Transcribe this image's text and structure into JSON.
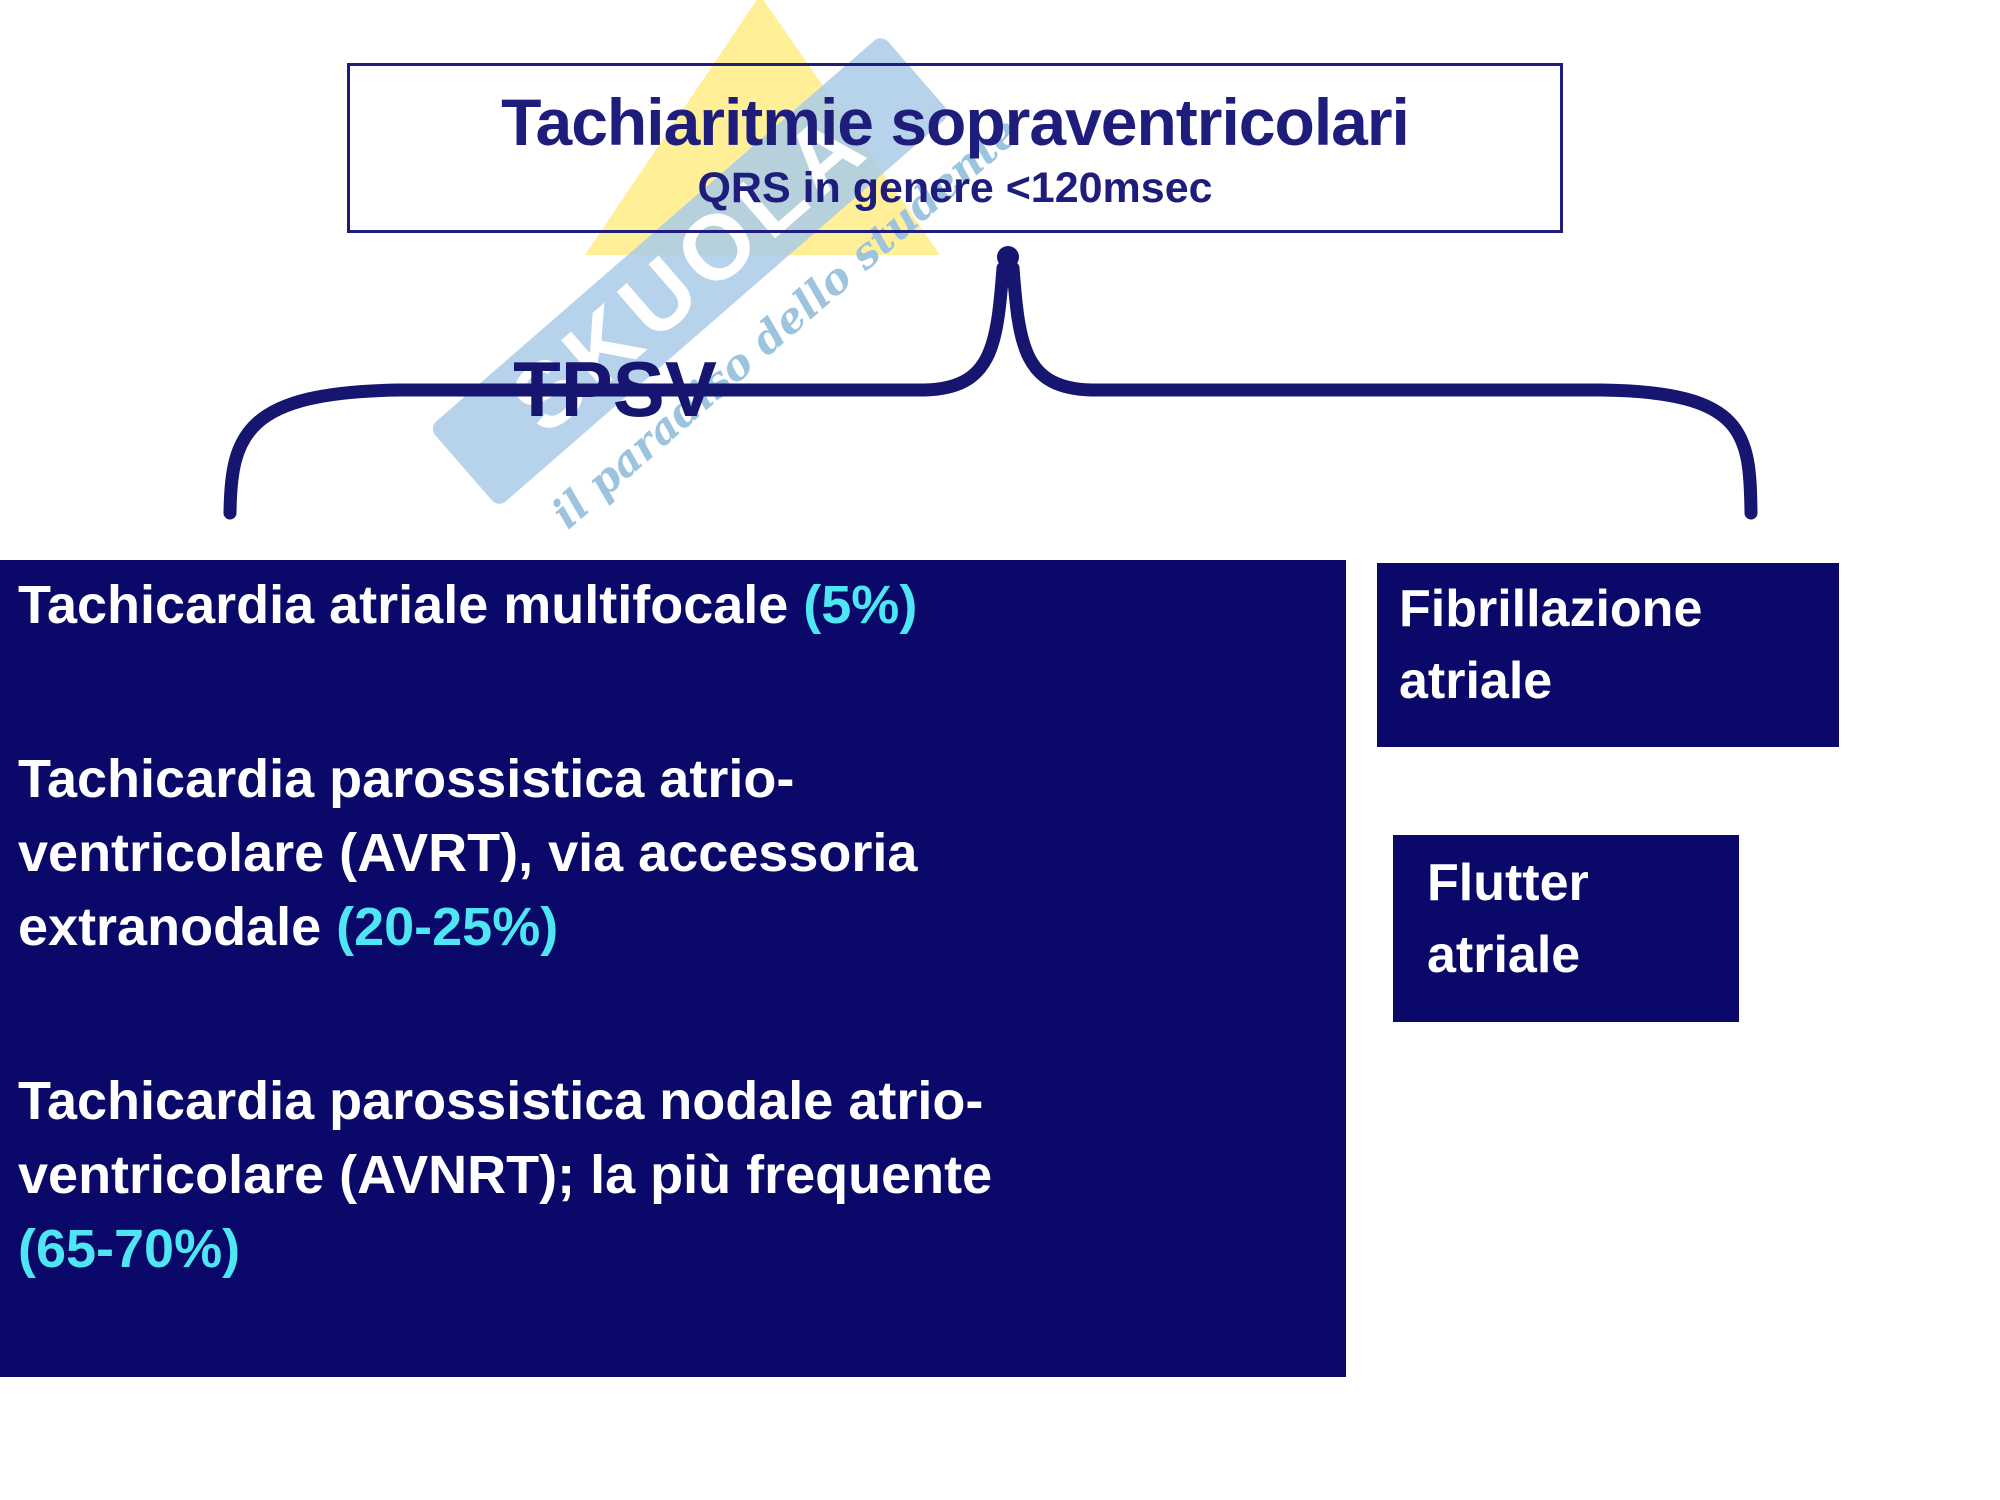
{
  "colors": {
    "background": "#ffffff",
    "navy_box": "#0a0868",
    "navy_line": "#16156f",
    "title_text": "#1e1d7c",
    "white_text": "#ffffff",
    "cyan_text": "#4ee6f5",
    "watermark_band": "#a9cbe7",
    "watermark_yellow": "#ffeb7d",
    "watermark_script": "#9cc4de"
  },
  "title_box": {
    "title": "Tachiaritmie sopraventricolari",
    "subtitle": "QRS in genere <120msec"
  },
  "brace": {
    "label": "TPSV"
  },
  "tpsv_panel": {
    "lines": [
      {
        "para_start": true,
        "segments": [
          {
            "text": "Tachicardia atriale multifocale ",
            "color": "white"
          },
          {
            "text": "(5%)",
            "color": "cyan"
          }
        ]
      },
      {
        "para_start": true,
        "segments": [
          {
            "text": "Tachicardia parossistica atrio-",
            "color": "white"
          }
        ]
      },
      {
        "para_start": false,
        "segments": [
          {
            "text": "ventricolare (AVRT), via accessoria",
            "color": "white"
          }
        ]
      },
      {
        "para_start": false,
        "segments": [
          {
            "text": "extranodale ",
            "color": "white"
          },
          {
            "text": "(20-25%)",
            "color": "cyan"
          }
        ]
      },
      {
        "para_start": true,
        "segments": [
          {
            "text": "Tachicardia parossistica nodale atrio-",
            "color": "white"
          }
        ]
      },
      {
        "para_start": false,
        "segments": [
          {
            "text": "ventricolare (AVNRT); la più frequente",
            "color": "white"
          }
        ]
      },
      {
        "para_start": false,
        "segments": [
          {
            "text": "(65-70%)",
            "color": "cyan"
          }
        ]
      }
    ]
  },
  "side_boxes": [
    {
      "label": "Fibrillazione atriale"
    },
    {
      "label": "Flutter atriale"
    }
  ],
  "watermark": {
    "brand": "SKUOLA",
    "tagline": "il paradiso dello studente"
  }
}
